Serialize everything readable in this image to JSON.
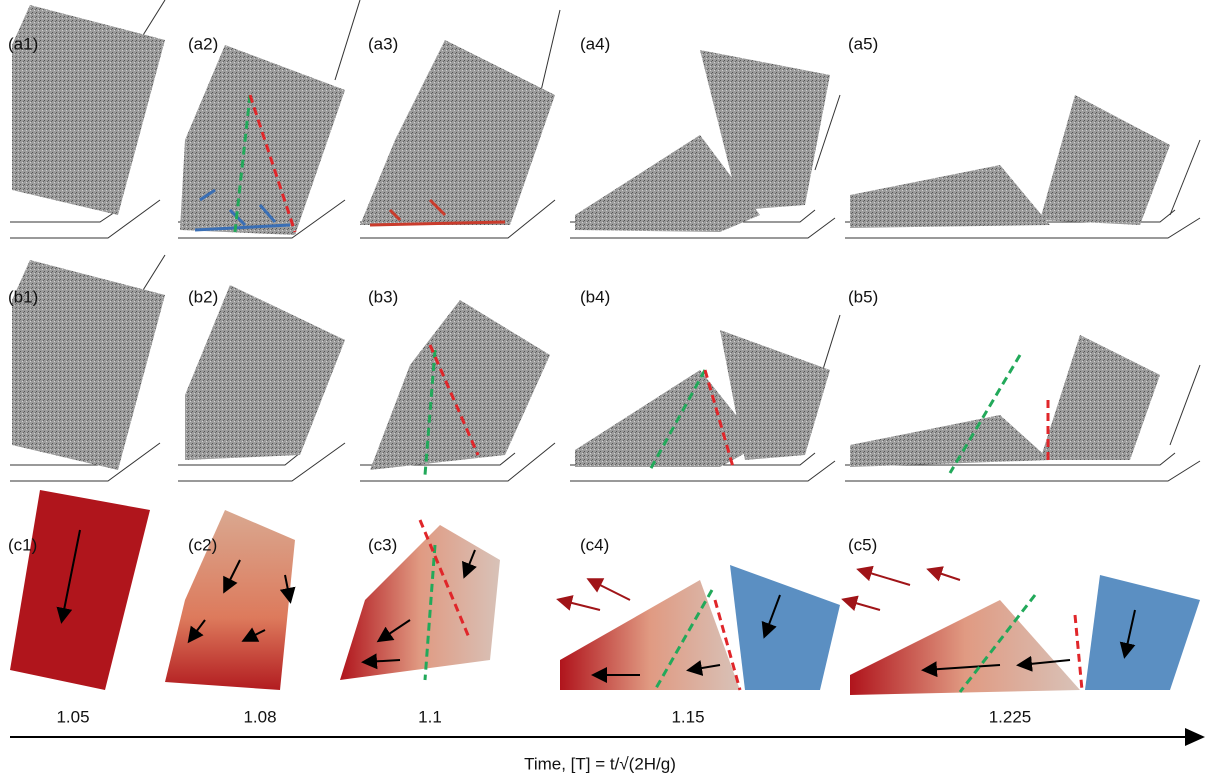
{
  "rows": [
    [
      "(a1)",
      "(a2)",
      "(a3)",
      "(a4)",
      "(a5)"
    ],
    [
      "(b1)",
      "(b2)",
      "(b3)",
      "(b4)",
      "(b5)"
    ],
    [
      "(c1)",
      "(c2)",
      "(c3)",
      "(c4)",
      "(c5)"
    ]
  ],
  "times": [
    "1.05",
    "1.08",
    "1.1",
    "1.15",
    "1.225"
  ],
  "axis_label": "Time, [T] = t/√(2H/g)"
}
